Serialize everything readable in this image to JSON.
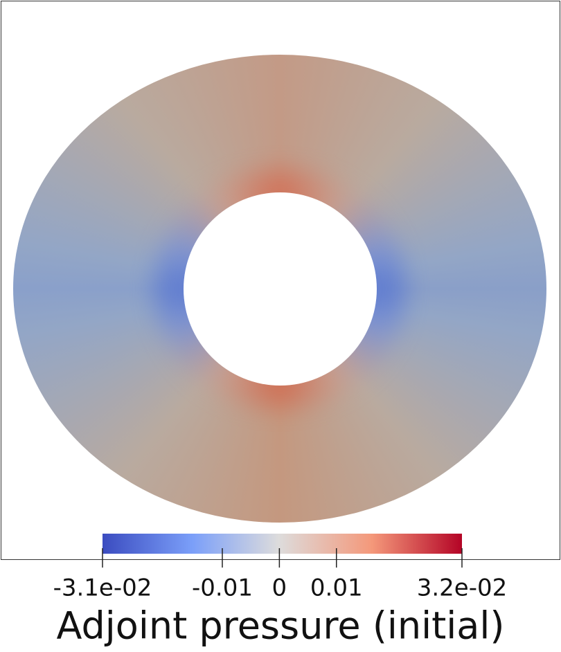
{
  "colorbar": {
    "title": "Adjoint pressure (initial)",
    "lim": [
      -0.031,
      0.032
    ],
    "ticks": [
      {
        "value": -0.031,
        "label": "-3.1e-02"
      },
      -0.01,
      0,
      0.01,
      {
        "value": 0.032,
        "label": "3.2e-02"
      }
    ]
  }
}
